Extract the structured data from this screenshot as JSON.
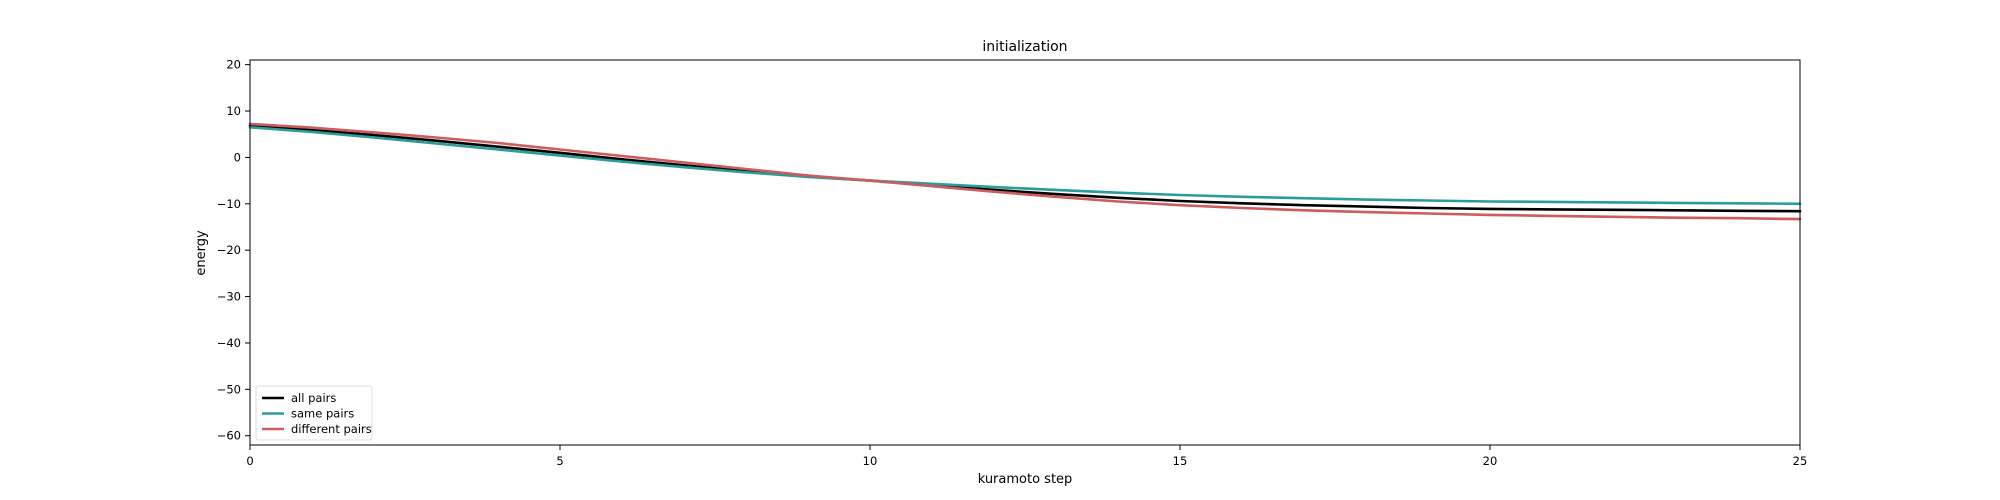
{
  "chart_data": {
    "type": "line",
    "title": "initialization",
    "xlabel": "kuramoto step",
    "ylabel": "energy",
    "xlim": [
      0,
      25
    ],
    "ylim": [
      -62,
      21
    ],
    "xticks": [
      0,
      5,
      10,
      15,
      20,
      25
    ],
    "yticks": [
      20,
      10,
      0,
      -10,
      -20,
      -30,
      -40,
      -50,
      -60
    ],
    "grid": false,
    "legend_position": "lower-left",
    "x": [
      0,
      1,
      2,
      3,
      4,
      5,
      6,
      7,
      8,
      9,
      10,
      11,
      12,
      13,
      14,
      15,
      16,
      17,
      18,
      19,
      20,
      21,
      22,
      23,
      24,
      25
    ],
    "series": [
      {
        "name": "all pairs",
        "color": "#000000",
        "values": [
          6.8,
          5.9,
          4.8,
          3.6,
          2.3,
          1.0,
          -0.4,
          -1.7,
          -3.0,
          -4.1,
          -5.0,
          -6.0,
          -7.0,
          -7.9,
          -8.7,
          -9.4,
          -9.9,
          -10.3,
          -10.6,
          -10.9,
          -11.1,
          -11.2,
          -11.3,
          -11.4,
          -11.5,
          -11.6
        ]
      },
      {
        "name": "same pairs",
        "color": "#2a9d9a",
        "values": [
          6.5,
          5.5,
          4.3,
          3.0,
          1.7,
          0.4,
          -0.9,
          -2.1,
          -3.2,
          -4.2,
          -5.0,
          -5.7,
          -6.4,
          -7.0,
          -7.6,
          -8.1,
          -8.5,
          -8.8,
          -9.1,
          -9.3,
          -9.5,
          -9.6,
          -9.7,
          -9.8,
          -9.9,
          -10.0
        ]
      },
      {
        "name": "different pairs",
        "color": "#cd5c5c",
        "values": [
          7.2,
          6.4,
          5.4,
          4.3,
          3.1,
          1.7,
          0.3,
          -1.1,
          -2.5,
          -3.9,
          -5.0,
          -6.2,
          -7.4,
          -8.5,
          -9.5,
          -10.3,
          -10.9,
          -11.4,
          -11.8,
          -12.1,
          -12.4,
          -12.6,
          -12.8,
          -13.0,
          -13.1,
          -13.3
        ]
      }
    ]
  }
}
